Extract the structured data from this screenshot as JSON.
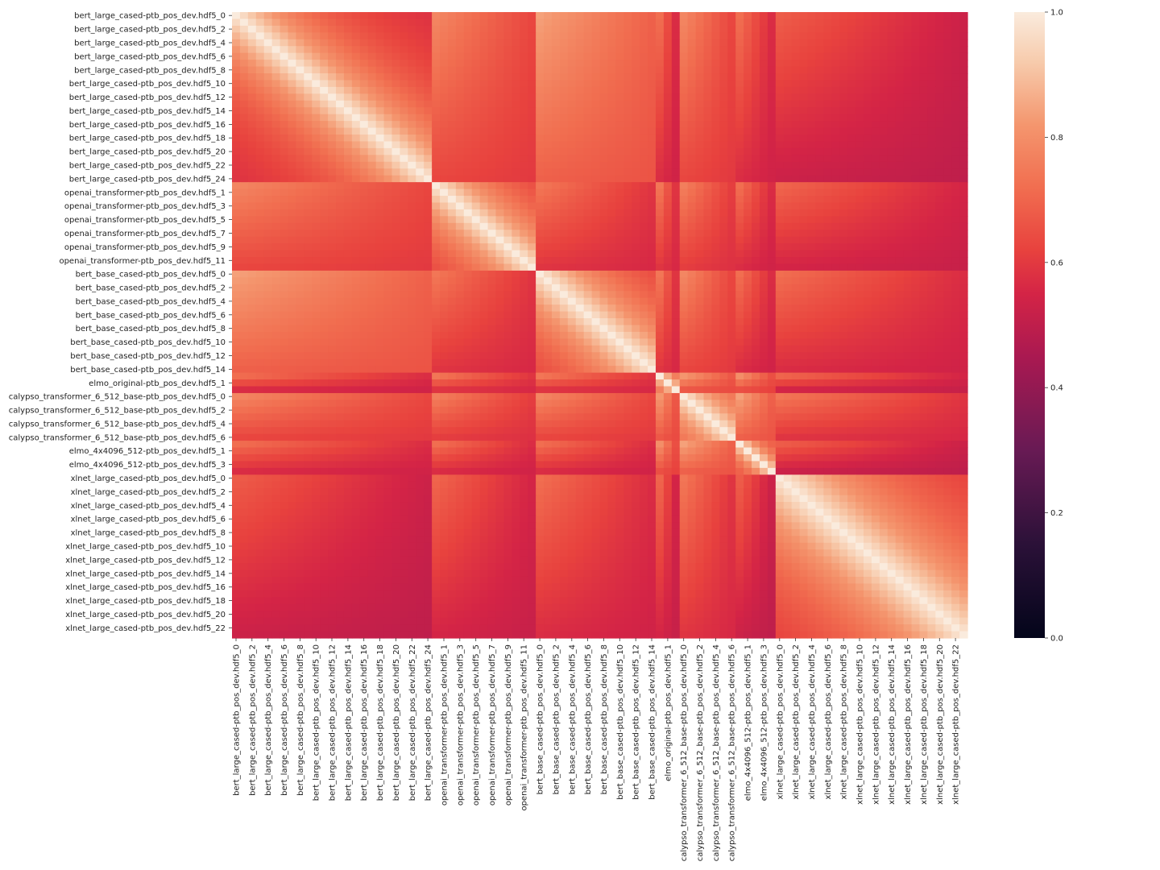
{
  "chart_data": {
    "type": "heatmap",
    "title": "",
    "xlabel": "",
    "ylabel": "",
    "groups": [
      {
        "name": "bert_large_cased",
        "rows": 25,
        "row_label_format": "bert_large_cased-ptb_pos_dev.hdf5_{i}",
        "row_label_step": 2,
        "col_label_step": 2,
        "col_label_format": "bert_large_cased-ptb_pos_dev.hdf5_{i}"
      },
      {
        "name": "openai_transformer",
        "rows": 13,
        "row_label_format": "openai_transformer-ptb_pos_dev.hdf5_{i}",
        "row_label_start": 1,
        "row_label_step": 2,
        "col_label_start": 1,
        "col_label_step": 2,
        "col_label_format": "openai_transformer-ptb_pos_dev.hdf5_{i}"
      },
      {
        "name": "bert_base_cased",
        "rows": 15,
        "row_label_format": "bert_base_cased-ptb_pos_dev.hdf5_{i}",
        "row_label_step": 2,
        "col_label_step": 2,
        "col_label_format": "bert_base_cased-ptb_pos_dev.hdf5_{i}"
      },
      {
        "name": "elmo_original",
        "rows": 3,
        "row_label_format": "elmo_original-ptb_pos_dev.hdf5_{i}",
        "row_label_start": 1,
        "row_label_step": 2,
        "col_label_start": 1,
        "col_label_step": 2,
        "col_label_format": "elmo_original-ptb_pos_dev.hdf5_{i}"
      },
      {
        "name": "calypso_transformer_6_512_base",
        "rows": 7,
        "row_label_format": "calypso_transformer_6_512_base-ptb_pos_dev.hdf5_{i}",
        "row_label_step": 2,
        "col_label_step": 2,
        "col_label_format": "calypso_transformer_6_512_base-ptb_pos_dev.hdf5_{i}"
      },
      {
        "name": "elmo_4x4096_512",
        "rows": 5,
        "row_label_format": "elmo_4x4096_512-ptb_pos_dev.hdf5_{i}",
        "row_label_start": 1,
        "row_label_step": 2,
        "col_label_start": 1,
        "col_label_step": 2,
        "col_label_format": "elmo_4x4096_512-ptb_pos_dev.hdf5_{i}"
      },
      {
        "name": "xlnet_large_cased",
        "rows": 24,
        "row_label_format": "xlnet_large_cased-ptb_pos_dev.hdf5_{i}",
        "row_label_step": 2,
        "col_label_step": 2,
        "col_label_format": "xlnet_large_cased-ptb_pos_dev.hdf5_{i}"
      }
    ],
    "row_labels_override_note": "",
    "between_group_similarity": [
      [
        1.0,
        0.66,
        0.72,
        0.6,
        0.66,
        0.6,
        0.56
      ],
      [
        0.66,
        1.0,
        0.62,
        0.62,
        0.64,
        0.6,
        0.58
      ],
      [
        0.72,
        0.62,
        1.0,
        0.62,
        0.66,
        0.6,
        0.6
      ],
      [
        0.6,
        0.62,
        0.62,
        1.0,
        0.7,
        0.68,
        0.58
      ],
      [
        0.66,
        0.64,
        0.66,
        0.7,
        1.0,
        0.72,
        0.62
      ],
      [
        0.6,
        0.6,
        0.6,
        0.68,
        0.72,
        1.0,
        0.56
      ],
      [
        0.56,
        0.58,
        0.6,
        0.58,
        0.62,
        0.56,
        1.0
      ]
    ],
    "within_group_decay": [
      0.035,
      0.04,
      0.035,
      0.15,
      0.06,
      0.12,
      0.025
    ],
    "within_group_floor": [
      0.55,
      0.55,
      0.55,
      0.6,
      0.62,
      0.6,
      0.55
    ],
    "colorbar": {
      "min": 0.0,
      "max": 1.0,
      "ticks": [
        "0.0",
        "0.2",
        "0.4",
        "0.6",
        "0.8",
        "1.0"
      ]
    },
    "colormap": "rocket"
  }
}
